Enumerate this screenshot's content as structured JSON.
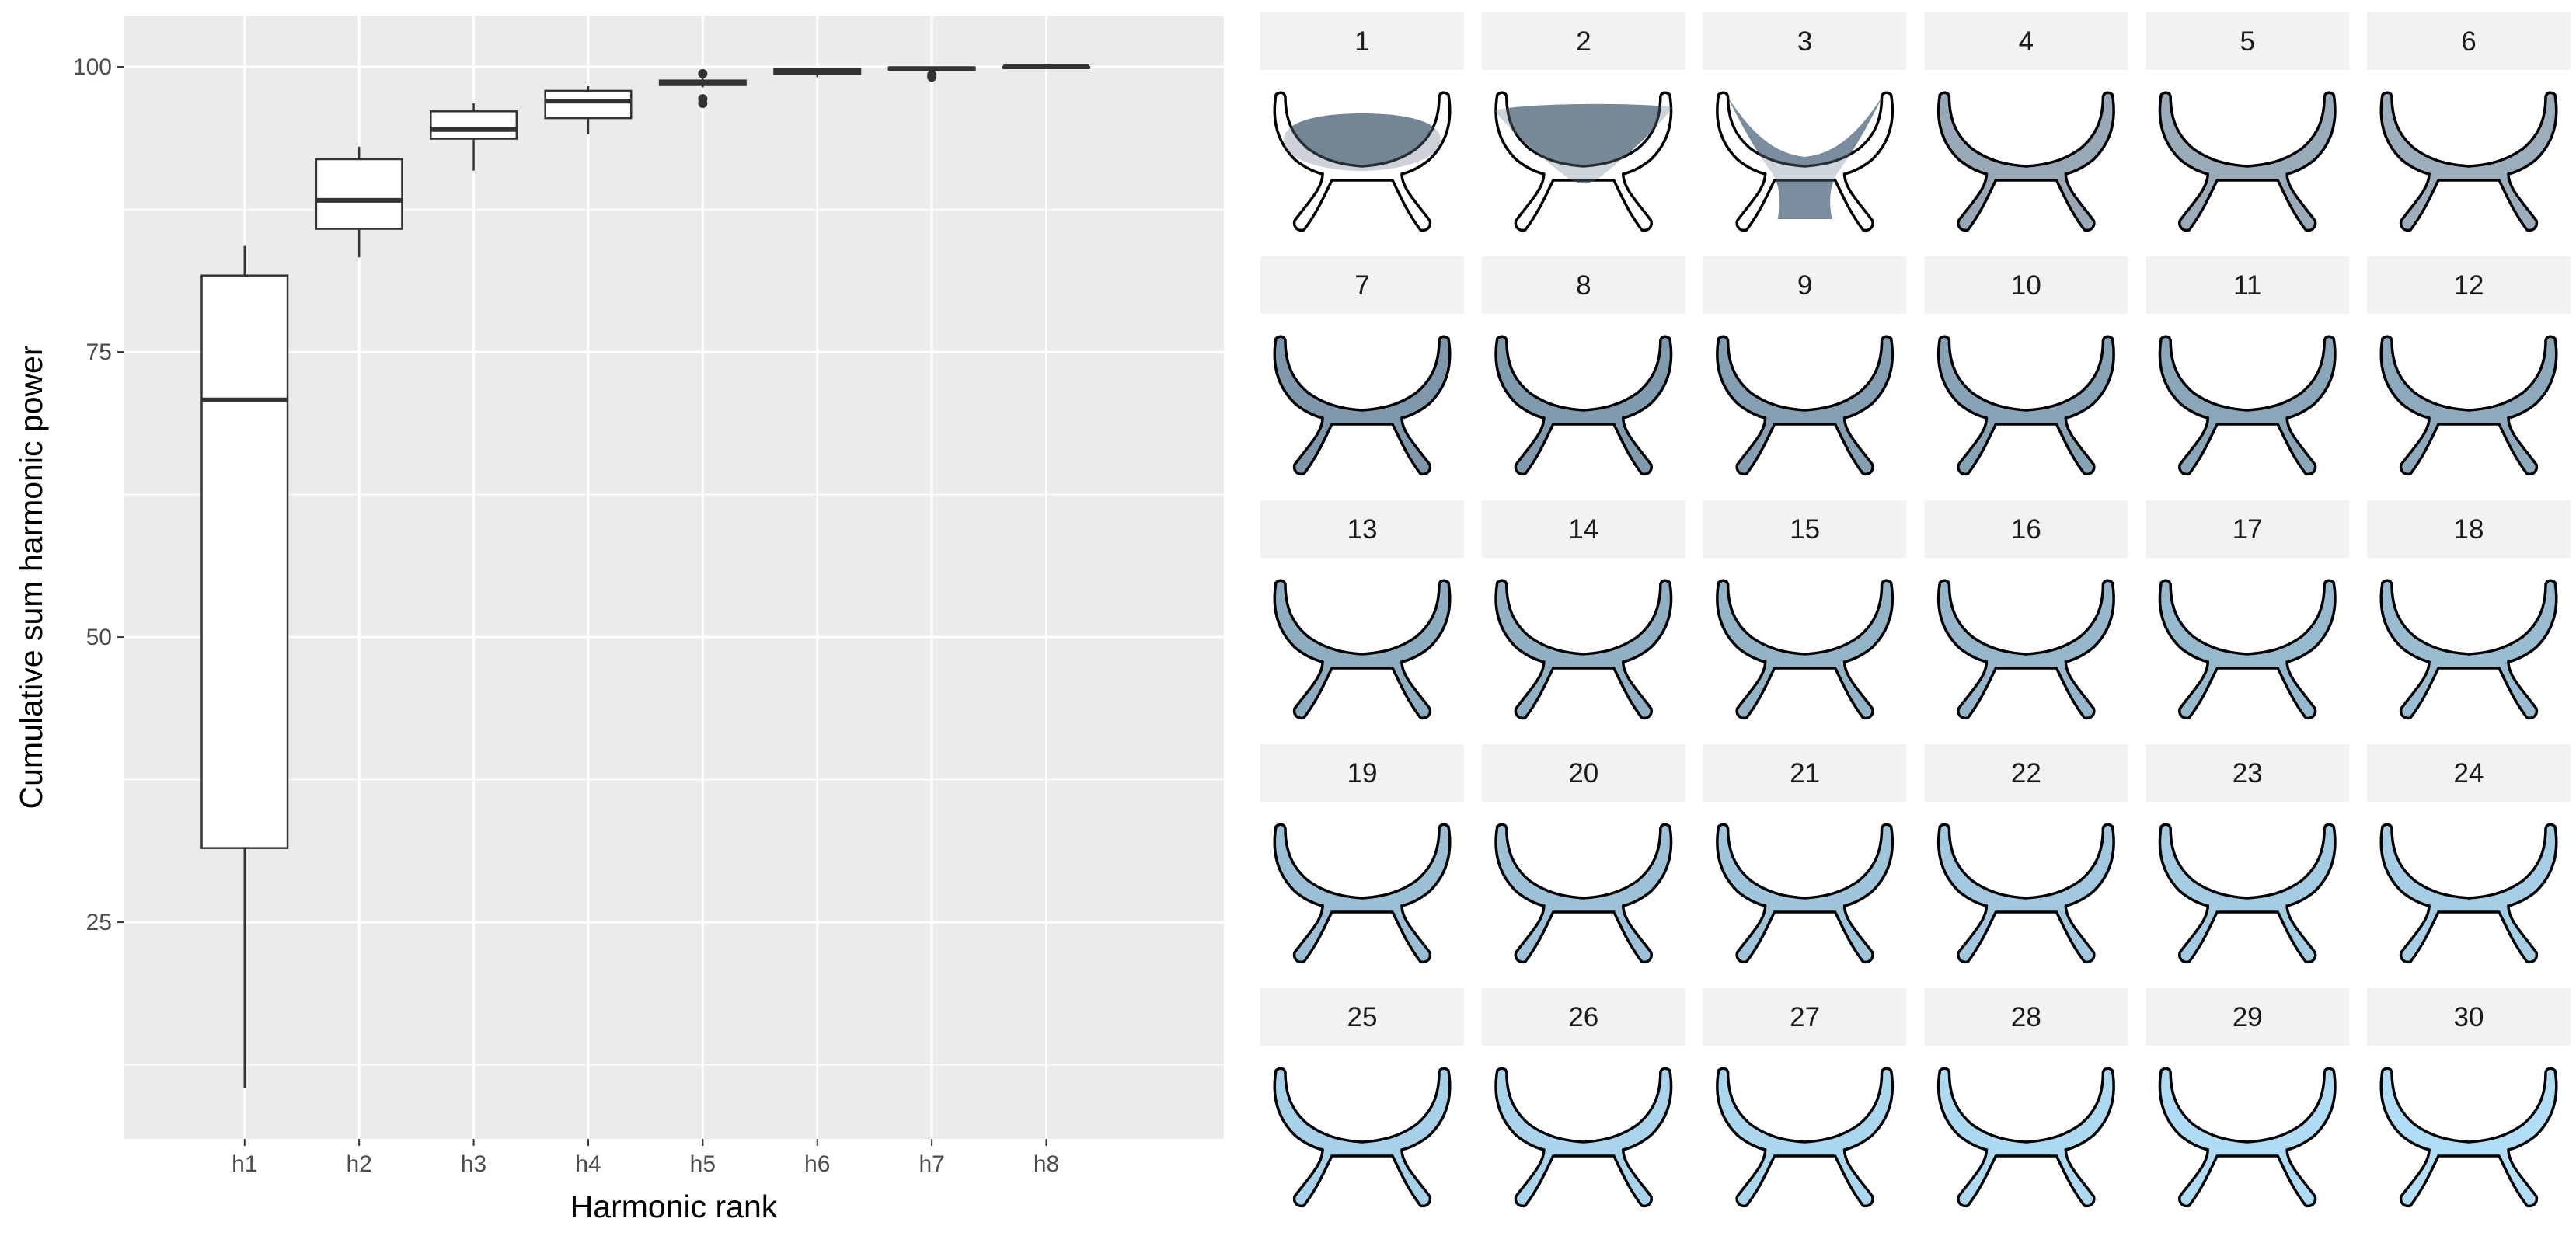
{
  "chart_data": [
    {
      "type": "boxplot",
      "xlabel": "Harmonic rank",
      "ylabel": "Cumulative sum harmonic power",
      "ylim": [
        6,
        104.5
      ],
      "yticks": [
        25,
        50,
        75,
        100
      ],
      "grid": true,
      "categories": [
        "h1",
        "h2",
        "h3",
        "h4",
        "h5",
        "h6",
        "h7",
        "h8"
      ],
      "boxes": [
        {
          "label": "h1",
          "min": 10.5,
          "q1": 31.5,
          "median": 70.8,
          "q3": 81.7,
          "max": 84.3,
          "outliers": []
        },
        {
          "label": "h2",
          "min": 83.3,
          "q1": 85.8,
          "median": 88.3,
          "q3": 91.9,
          "max": 93.0,
          "outliers": []
        },
        {
          "label": "h3",
          "min": 90.9,
          "q1": 93.7,
          "median": 94.5,
          "q3": 96.1,
          "max": 96.8,
          "outliers": []
        },
        {
          "label": "h4",
          "min": 94.1,
          "q1": 95.5,
          "median": 97.0,
          "q3": 97.9,
          "max": 98.3,
          "outliers": []
        },
        {
          "label": "h5",
          "min": 98.2,
          "q1": 98.4,
          "median": 98.6,
          "q3": 98.8,
          "max": 99.0,
          "outliers": [
            99.4,
            97.2,
            96.8
          ]
        },
        {
          "label": "h6",
          "min": 99.1,
          "q1": 99.4,
          "median": 99.6,
          "q3": 99.8,
          "max": 99.9,
          "outliers": []
        },
        {
          "label": "h7",
          "min": 99.7,
          "q1": 99.75,
          "median": 99.85,
          "q3": 99.95,
          "max": 100.0,
          "outliers": [
            99.3,
            99.1
          ]
        },
        {
          "label": "h8",
          "min": 99.9,
          "q1": 99.95,
          "median": 100.0,
          "q3": 100.0,
          "max": 100.0,
          "outliers": []
        }
      ]
    },
    {
      "type": "small-multiples",
      "panels": [
        "1",
        "2",
        "3",
        "4",
        "5",
        "6",
        "7",
        "8",
        "9",
        "10",
        "11",
        "12",
        "13",
        "14",
        "15",
        "16",
        "17",
        "18",
        "19",
        "20",
        "21",
        "22",
        "23",
        "24",
        "25",
        "26",
        "27",
        "28",
        "29",
        "30"
      ],
      "panel_colors": [
        "#6d7f8f",
        "#6f8393",
        "#72889a",
        "#758b9e",
        "#788fa2",
        "#7b93a6",
        "#7e97aa",
        "#819bae",
        "#849fb2",
        "#87a3b6",
        "#8aa7ba",
        "#8daabd",
        "#8fadc0",
        "#91b0c4",
        "#93b3c7",
        "#95b6cb",
        "#97b9ce",
        "#99bcd1",
        "#9bbfd4",
        "#9dc2d7",
        "#9fc5db",
        "#a1c8de",
        "#a3cbe1",
        "#a5cee4",
        "#a7d1e8",
        "#a9d4eb",
        "#abd7ee",
        "#add9f1",
        "#afdcf4",
        "#b1def6"
      ]
    }
  ]
}
